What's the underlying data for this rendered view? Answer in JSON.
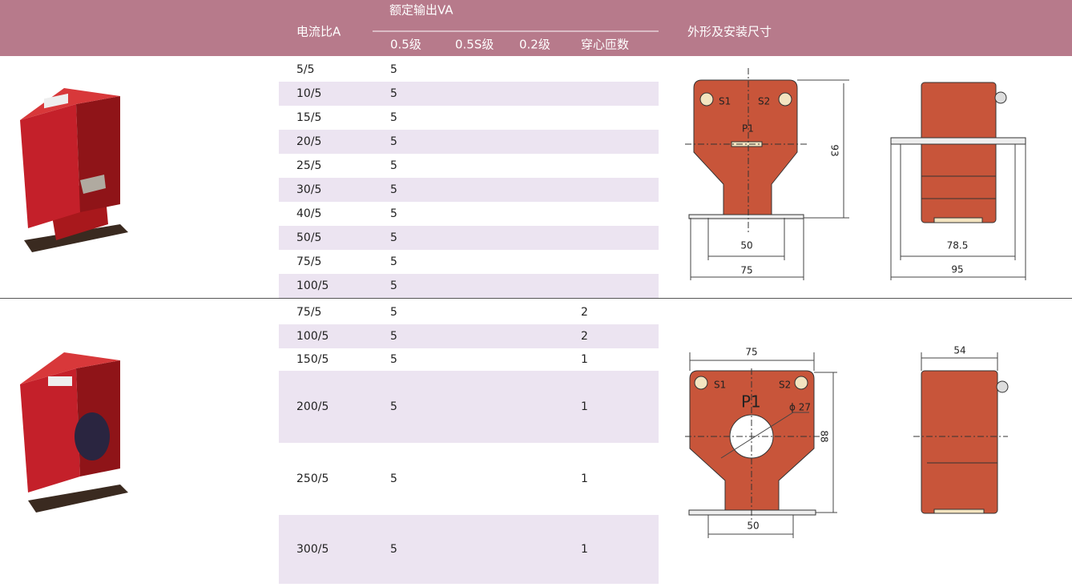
{
  "header": {
    "ratio": "电流比A",
    "rated_output": "额定输出VA",
    "class_05": "0.5级",
    "class_05s": "0.5S级",
    "class_02": "0.2级",
    "turns": "穿心匝数",
    "dimensions": "外形及安装尺寸"
  },
  "sections": [
    {
      "rows": [
        {
          "ratio": "5/5",
          "class_05": 5
        },
        {
          "ratio": "10/5",
          "class_05": 5
        },
        {
          "ratio": "15/5",
          "class_05": 5
        },
        {
          "ratio": "20/5",
          "class_05": 5
        },
        {
          "ratio": "25/5",
          "class_05": 5
        },
        {
          "ratio": "30/5",
          "class_05": 5
        },
        {
          "ratio": "40/5",
          "class_05": 5
        },
        {
          "ratio": "50/5",
          "class_05": 5
        },
        {
          "ratio": "75/5",
          "class_05": 5
        },
        {
          "ratio": "100/5",
          "class_05": 5
        }
      ],
      "drawing": {
        "s1": "S1",
        "s2": "S2",
        "p1": "P1",
        "height": 93,
        "inner_width": 50,
        "outer_width": 75,
        "side_inner": 78.5,
        "side_outer": 95
      }
    },
    {
      "rows": [
        {
          "ratio": "75/5",
          "class_05": 5,
          "turns": 2
        },
        {
          "ratio": "100/5",
          "class_05": 5,
          "turns": 2
        },
        {
          "ratio": "150/5",
          "class_05": 5,
          "turns": 1
        },
        {
          "ratio": "200/5",
          "class_05": 5,
          "turns": 1
        },
        {
          "ratio": "250/5",
          "class_05": 5,
          "turns": 1
        },
        {
          "ratio": "300/5",
          "class_05": 5,
          "turns": 1
        }
      ],
      "drawing": {
        "s1": "S1",
        "s2": "S2",
        "p1": "P1",
        "hole": "ϕ 27",
        "outer_width": 75,
        "height": 88,
        "inner_width": 50,
        "side_depth": 54
      }
    }
  ]
}
